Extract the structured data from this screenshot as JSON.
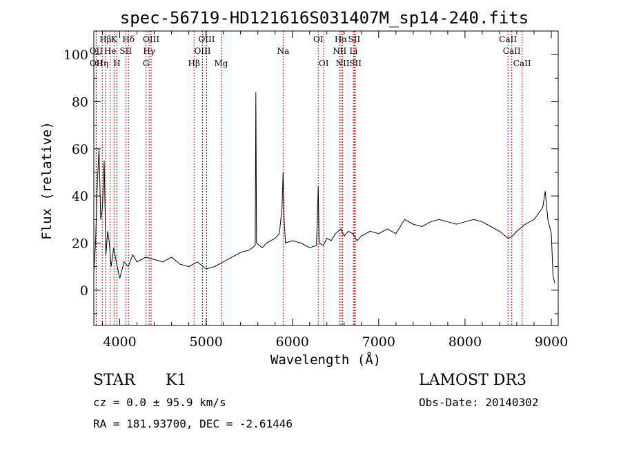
{
  "chart_data": {
    "type": "line",
    "title": "spec-56719-HD121616S031407M_sp14-240.fits",
    "xlabel": "Wavelength (Å)",
    "ylabel": "Flux (relative)",
    "xlim": [
      3700,
      9080
    ],
    "ylim": [
      -15,
      110
    ],
    "xticks": [
      4000,
      5000,
      6000,
      7000,
      8000,
      9000
    ],
    "yticks": [
      0,
      20,
      40,
      60,
      80,
      100
    ],
    "grid": false,
    "series": [
      {
        "x": [
          3700,
          3720,
          3740,
          3760,
          3780,
          3800,
          3820,
          3840,
          3860,
          3880,
          3900,
          3930,
          3960,
          4000,
          4050,
          4100,
          4150,
          4200,
          4300,
          4400,
          4500,
          4600,
          4700,
          4800,
          4900,
          5000,
          5100,
          5200,
          5300,
          5400,
          5500,
          5570,
          5577,
          5585,
          5650,
          5700,
          5800,
          5850,
          5880,
          5893,
          5905,
          5920,
          6000,
          6100,
          6200,
          6280,
          6300,
          6310,
          6360,
          6400,
          6450,
          6500,
          6563,
          6600,
          6650,
          6700,
          6750,
          6800,
          6900,
          7000,
          7100,
          7200,
          7300,
          7400,
          7500,
          7600,
          7700,
          7800,
          7900,
          8000,
          8100,
          8200,
          8300,
          8400,
          8500,
          8550,
          8600,
          8700,
          8800,
          8900,
          8930,
          8960,
          9000,
          9020,
          9040
        ],
        "y": [
          8,
          20,
          45,
          60,
          30,
          35,
          55,
          15,
          25,
          20,
          10,
          18,
          12,
          5,
          12,
          10,
          15,
          12,
          14,
          13,
          12,
          14,
          11,
          10,
          12,
          9,
          10,
          12,
          14,
          16,
          17,
          19,
          84,
          20,
          18,
          20,
          22,
          24,
          35,
          50,
          30,
          20,
          21,
          20,
          18,
          19,
          44,
          20,
          19,
          22,
          21,
          24,
          26,
          23,
          25,
          24,
          21,
          23,
          25,
          24,
          26,
          24,
          30,
          28,
          27,
          29,
          30,
          29,
          28,
          29,
          30,
          29,
          27,
          25,
          22,
          23,
          25,
          28,
          30,
          35,
          42,
          30,
          24,
          6,
          3
        ]
      }
    ],
    "line_markers": [
      {
        "label": "Hβ",
        "x": 3835,
        "row": 1
      },
      {
        "label": "K",
        "x": 3934,
        "row": 1
      },
      {
        "label": "Hδ",
        "x": 4102,
        "row": 1
      },
      {
        "label": "OIII",
        "x": 4364,
        "row": 1
      },
      {
        "label": "OIII",
        "x": 5007,
        "row": 1
      },
      {
        "label": "OI",
        "x": 6300,
        "row": 1
      },
      {
        "label": "Hα",
        "x": 6563,
        "row": 1
      },
      {
        "label": "SII",
        "x": 6717,
        "row": 1
      },
      {
        "label": "CaII",
        "x": 8498,
        "row": 1
      },
      {
        "label": "OII",
        "x": 3727,
        "row": 2
      },
      {
        "label": "He",
        "x": 3889,
        "row": 2
      },
      {
        "label": "SII",
        "x": 4070,
        "row": 2
      },
      {
        "label": "Hγ",
        "x": 4341,
        "row": 2
      },
      {
        "label": "OIII",
        "x": 4959,
        "row": 2
      },
      {
        "label": "Na",
        "x": 5893,
        "row": 2
      },
      {
        "label": "NII",
        "x": 6548,
        "row": 2
      },
      {
        "label": "Li",
        "x": 6708,
        "row": 2
      },
      {
        "label": "CaII",
        "x": 8542,
        "row": 2
      },
      {
        "label": "OII",
        "x": 3729,
        "row": 3
      },
      {
        "label": "Hη",
        "x": 3798,
        "row": 3
      },
      {
        "label": "H",
        "x": 3968,
        "row": 3
      },
      {
        "label": "G",
        "x": 4305,
        "row": 3
      },
      {
        "label": "Hβ",
        "x": 4861,
        "row": 3
      },
      {
        "label": "Mg",
        "x": 5175,
        "row": 3
      },
      {
        "label": "OI",
        "x": 6364,
        "row": 3
      },
      {
        "label": "NII",
        "x": 6583,
        "row": 3
      },
      {
        "label": "SII",
        "x": 6731,
        "row": 3
      },
      {
        "label": "CaII",
        "x": 8662,
        "row": 3
      }
    ]
  },
  "info": {
    "object_class": "STAR",
    "subclass": "K1",
    "survey": "LAMOST DR3",
    "cz": "cz = 0.0 ± 95.9 km/s",
    "obs_date": "Obs-Date: 20140302",
    "coords": "RA = 181.93700, DEC =  -2.61446"
  }
}
